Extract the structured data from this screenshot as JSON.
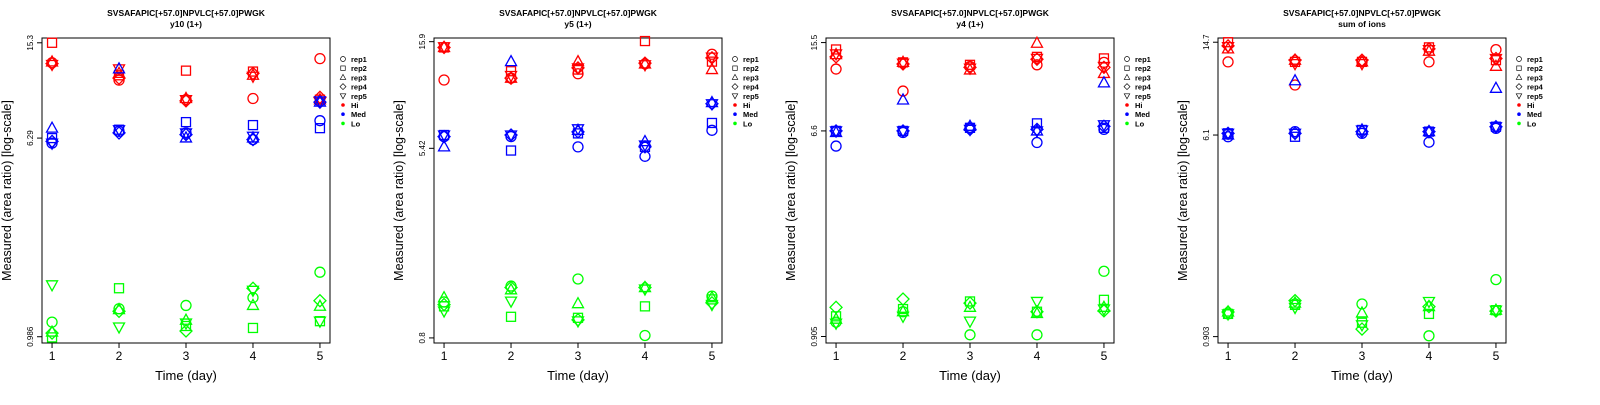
{
  "colors": {
    "Hi": "#ff0000",
    "Med": "#0000ff",
    "Lo": "#00ff00"
  },
  "legend": {
    "entries": [
      {
        "label": "rep1",
        "shape": "circle"
      },
      {
        "label": "rep2",
        "shape": "square"
      },
      {
        "label": "rep3",
        "shape": "triangle-up"
      },
      {
        "label": "rep4",
        "shape": "diamond"
      },
      {
        "label": "rep5",
        "shape": "triangle-down"
      },
      {
        "label": "Hi",
        "shape": "dot",
        "color": "#ff0000"
      },
      {
        "label": "Med",
        "shape": "dot",
        "color": "#0000ff"
      },
      {
        "label": "Lo",
        "shape": "dot",
        "color": "#00ff00"
      }
    ],
    "placement": "right"
  },
  "chart_data": [
    {
      "type": "scatter",
      "title": "SVSAFAPIC[+57.0]NPVLC[+57.0]PWGK",
      "subtitle": "y10 (1+)",
      "xlabel": "Time (day)",
      "ylabel": "Measured (area ratio) [log-scale]",
      "log_y": true,
      "grid": false,
      "x_ticks": [
        1,
        2,
        3,
        4,
        5
      ],
      "y_ticks": [
        0.986,
        6.29,
        15.3
      ],
      "y_tick_labels": [
        "0.986",
        "6.29",
        "15.3"
      ],
      "ylim": [
        0.93,
        16.0
      ],
      "series": [
        {
          "name": "Hi",
          "color": "#ff0000",
          "points": [
            {
              "rep": "rep1",
              "values": [
                12.7,
                10.8,
                9.0,
                9.1,
                13.2
              ]
            },
            {
              "rep": "rep2",
              "values": [
                15.3,
                11.3,
                11.8,
                11.7,
                9.0
              ]
            },
            {
              "rep": "rep3",
              "values": [
                12.8,
                11.5,
                9.1,
                11.3,
                9.0
              ]
            },
            {
              "rep": "rep4",
              "values": [
                12.6,
                11.0,
                8.9,
                11.5,
                9.2
              ]
            },
            {
              "rep": "rep5",
              "values": [
                12.5,
                12.0,
                9.0,
                11.2,
                8.8
              ]
            }
          ]
        },
        {
          "name": "Med",
          "color": "#0000ff",
          "points": [
            {
              "rep": "rep1",
              "values": [
                6.0,
                6.7,
                6.6,
                6.2,
                7.4
              ]
            },
            {
              "rep": "rep2",
              "values": [
                6.29,
                6.8,
                7.3,
                7.1,
                6.9
              ]
            },
            {
              "rep": "rep3",
              "values": [
                6.9,
                12.0,
                6.3,
                6.3,
                8.8
              ]
            },
            {
              "rep": "rep4",
              "values": [
                6.1,
                6.6,
                6.5,
                6.2,
                8.8
              ]
            },
            {
              "rep": "rep5",
              "values": [
                6.0,
                6.8,
                6.6,
                6.4,
                8.9
              ]
            }
          ]
        },
        {
          "name": "Lo",
          "color": "#00ff00",
          "points": [
            {
              "rep": "rep1",
              "values": [
                1.13,
                1.28,
                1.32,
                1.42,
                1.8
              ]
            },
            {
              "rep": "rep2",
              "values": [
                0.98,
                1.55,
                1.09,
                1.07,
                1.14
              ]
            },
            {
              "rep": "rep3",
              "values": [
                1.03,
                1.27,
                1.15,
                1.32,
                1.31
              ]
            },
            {
              "rep": "rep4",
              "values": [
                1.02,
                1.25,
                1.04,
                1.55,
                1.38
              ]
            },
            {
              "rep": "rep5",
              "values": [
                1.6,
                1.08,
                1.12,
                1.52,
                1.14
              ]
            }
          ]
        }
      ]
    },
    {
      "type": "scatter",
      "title": "SVSAFAPIC[+57.0]NPVLC[+57.0]PWGK",
      "subtitle": "y5 (1+)",
      "xlabel": "Time (day)",
      "ylabel": "Measured (area ratio) [log-scale]",
      "log_y": true,
      "grid": false,
      "x_ticks": [
        1,
        2,
        3,
        4,
        5
      ],
      "y_ticks": [
        0.8,
        5.42,
        15.9
      ],
      "y_tick_labels": [
        "0.8",
        "5.42",
        "15.9"
      ],
      "ylim": [
        0.76,
        16.5
      ],
      "series": [
        {
          "name": "Hi",
          "color": "#ff0000",
          "points": [
            {
              "rep": "rep1",
              "values": [
                10.8,
                11.0,
                11.5,
                12.7,
                14.0
              ]
            },
            {
              "rep": "rep2",
              "values": [
                15.0,
                11.8,
                12.0,
                16.0,
                13.0
              ]
            },
            {
              "rep": "rep3",
              "values": [
                15.0,
                11.0,
                13.0,
                12.7,
                12.0
              ]
            },
            {
              "rep": "rep4",
              "values": [
                15.0,
                11.0,
                12.2,
                12.8,
                13.5
              ]
            },
            {
              "rep": "rep5",
              "values": [
                15.1,
                11.3,
                12.2,
                12.6,
                13.6
              ]
            }
          ]
        },
        {
          "name": "Med",
          "color": "#0000ff",
          "points": [
            {
              "rep": "rep1",
              "values": [
                6.1,
                6.1,
                5.5,
                5.0,
                6.5
              ]
            },
            {
              "rep": "rep2",
              "values": [
                6.2,
                5.3,
                6.3,
                5.5,
                7.0
              ]
            },
            {
              "rep": "rep3",
              "values": [
                5.5,
                13.0,
                6.5,
                5.8,
                8.6
              ]
            },
            {
              "rep": "rep4",
              "values": [
                6.1,
                6.2,
                6.4,
                5.5,
                8.5
              ]
            },
            {
              "rep": "rep5",
              "values": [
                6.2,
                6.2,
                6.6,
                5.6,
                8.5
              ]
            }
          ]
        },
        {
          "name": "Lo",
          "color": "#00ff00",
          "points": [
            {
              "rep": "rep1",
              "values": [
                1.15,
                1.35,
                1.45,
                0.82,
                1.22
              ]
            },
            {
              "rep": "rep2",
              "values": [
                1.1,
                0.99,
                0.98,
                1.1,
                1.18
              ]
            },
            {
              "rep": "rep3",
              "values": [
                1.2,
                1.3,
                1.13,
                1.33,
                1.2
              ]
            },
            {
              "rep": "rep4",
              "values": [
                1.12,
                1.33,
                0.96,
                1.33,
                1.14
              ]
            },
            {
              "rep": "rep5",
              "values": [
                1.05,
                1.16,
                0.95,
                1.31,
                1.12
              ]
            }
          ]
        }
      ]
    },
    {
      "type": "scatter",
      "title": "SVSAFAPIC[+57.0]NPVLC[+57.0]PWGK",
      "subtitle": "y4 (1+)",
      "xlabel": "Time (day)",
      "ylabel": "Measured (area ratio) [log-scale]",
      "log_y": true,
      "grid": false,
      "x_ticks": [
        1,
        2,
        3,
        4,
        5
      ],
      "y_ticks": [
        0.905,
        6.6,
        15.5
      ],
      "y_tick_labels": [
        "0.905",
        "6.6",
        "15.5"
      ],
      "ylim": [
        0.85,
        16.2
      ],
      "series": [
        {
          "name": "Hi",
          "color": "#ff0000",
          "points": [
            {
              "rep": "rep1",
              "values": [
                12.0,
                9.7,
                12.3,
                12.5,
                12.8
              ]
            },
            {
              "rep": "rep2",
              "values": [
                14.5,
                12.8,
                12.5,
                13.5,
                13.3
              ]
            },
            {
              "rep": "rep3",
              "values": [
                13.8,
                12.8,
                11.9,
                15.4,
                11.5
              ]
            },
            {
              "rep": "rep4",
              "values": [
                13.5,
                12.6,
                12.2,
                13.2,
                12.2
              ]
            },
            {
              "rep": "rep5",
              "values": [
                13.9,
                12.7,
                12.1,
                13.3,
                12.3
              ]
            }
          ]
        },
        {
          "name": "Med",
          "color": "#0000ff",
          "points": [
            {
              "rep": "rep1",
              "values": [
                5.7,
                6.5,
                6.8,
                5.9,
                6.7
              ]
            },
            {
              "rep": "rep2",
              "values": [
                6.6,
                6.6,
                6.8,
                7.1,
                6.8
              ]
            },
            {
              "rep": "rep3",
              "values": [
                6.5,
                8.9,
                6.9,
                6.6,
                10.5
              ]
            },
            {
              "rep": "rep4",
              "values": [
                6.6,
                6.6,
                6.7,
                6.7,
                6.9
              ]
            },
            {
              "rep": "rep5",
              "values": [
                6.6,
                6.6,
                6.7,
                6.6,
                7.0
              ]
            }
          ]
        },
        {
          "name": "Lo",
          "color": "#00ff00",
          "points": [
            {
              "rep": "rep1",
              "values": [
                1.04,
                1.15,
                0.92,
                0.92,
                1.7
              ]
            },
            {
              "rep": "rep2",
              "values": [
                1.1,
                1.18,
                1.27,
                1.15,
                1.29
              ]
            },
            {
              "rep": "rep3",
              "values": [
                1.07,
                1.15,
                1.2,
                1.13,
                1.2
              ]
            },
            {
              "rep": "rep4",
              "values": [
                1.2,
                1.3,
                1.25,
                1.15,
                1.16
              ]
            },
            {
              "rep": "rep5",
              "values": [
                1.03,
                1.1,
                1.05,
                1.27,
                1.18
              ]
            }
          ]
        }
      ]
    },
    {
      "type": "scatter",
      "title": "SVSAFAPIC[+57.0]NPVLC[+57.0]PWGK",
      "subtitle": "sum of ions",
      "xlabel": "Time (day)",
      "ylabel": "Measured (area ratio) [log-scale]",
      "log_y": true,
      "grid": false,
      "x_ticks": [
        1,
        2,
        3,
        4,
        5
      ],
      "y_ticks": [
        0.903,
        6.1,
        14.7
      ],
      "y_tick_labels": [
        "0.903",
        "6.1",
        "14.7"
      ],
      "ylim": [
        0.85,
        15.3
      ],
      "series": [
        {
          "name": "Hi",
          "color": "#ff0000",
          "points": [
            {
              "rep": "rep1",
              "values": [
                12.2,
                9.8,
                12.2,
                12.2,
                13.7
              ]
            },
            {
              "rep": "rep2",
              "values": [
                14.7,
                12.2,
                12.2,
                14.0,
                12.4
              ]
            },
            {
              "rep": "rep3",
              "values": [
                13.8,
                12.4,
                12.2,
                13.5,
                11.7
              ]
            },
            {
              "rep": "rep4",
              "values": [
                14.2,
                12.4,
                12.4,
                13.8,
                12.6
              ]
            },
            {
              "rep": "rep5",
              "values": [
                14.1,
                12.0,
                12.0,
                13.7,
                12.6
              ]
            }
          ]
        },
        {
          "name": "Med",
          "color": "#0000ff",
          "points": [
            {
              "rep": "rep1",
              "values": [
                6.0,
                6.3,
                6.2,
                5.7,
                6.5
              ]
            },
            {
              "rep": "rep2",
              "values": [
                6.2,
                6.0,
                6.4,
                6.3,
                6.6
              ]
            },
            {
              "rep": "rep3",
              "values": [
                6.1,
                10.2,
                6.4,
                6.3,
                9.5
              ]
            },
            {
              "rep": "rep4",
              "values": [
                6.2,
                6.2,
                6.3,
                6.3,
                6.6
              ]
            },
            {
              "rep": "rep5",
              "values": [
                6.2,
                6.2,
                6.4,
                6.3,
                6.6
              ]
            }
          ]
        },
        {
          "name": "Lo",
          "color": "#00ff00",
          "points": [
            {
              "rep": "rep1",
              "values": [
                1.12,
                1.23,
                1.23,
                0.91,
                1.55
              ]
            },
            {
              "rep": "rep2",
              "values": [
                1.12,
                1.22,
                1.03,
                1.12,
                1.16
              ]
            },
            {
              "rep": "rep3",
              "values": [
                1.14,
                1.24,
                1.13,
                1.2,
                1.16
              ]
            },
            {
              "rep": "rep4",
              "values": [
                1.14,
                1.27,
                0.97,
                1.2,
                1.15
              ]
            },
            {
              "rep": "rep5",
              "values": [
                1.12,
                1.19,
                1.01,
                1.26,
                1.16
              ]
            }
          ]
        }
      ]
    }
  ]
}
